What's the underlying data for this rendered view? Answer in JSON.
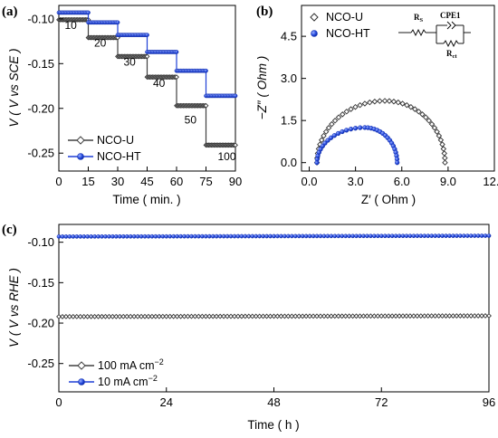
{
  "chart_data": [
    {
      "panel": "(a)",
      "type": "line",
      "xlabel": "Time ( min. )",
      "ylabel": "V ( V vs SCE )",
      "xlim": [
        0,
        90
      ],
      "ylim": [
        -0.27,
        -0.085
      ],
      "xticks": [
        "0",
        "15",
        "30",
        "45",
        "60",
        "75",
        "90"
      ],
      "yticks": [
        "-0.10",
        "-0.15",
        "-0.20",
        "-0.25"
      ],
      "annotations": [
        "10",
        "20",
        "30",
        "40",
        "50",
        "100"
      ],
      "legend": "bottom-left",
      "series": [
        {
          "name": "NCO-U",
          "color": "#404040",
          "marker": "diamond",
          "steps": [
            {
              "x0": 0,
              "x1": 15,
              "y": -0.101
            },
            {
              "x0": 15,
              "x1": 30,
              "y": -0.121
            },
            {
              "x0": 30,
              "x1": 45,
              "y": -0.142
            },
            {
              "x0": 45,
              "x1": 60,
              "y": -0.165
            },
            {
              "x0": 60,
              "x1": 75,
              "y": -0.197
            },
            {
              "x0": 75,
              "x1": 90,
              "y": -0.241
            }
          ]
        },
        {
          "name": "NCO-HT",
          "color": "#1f3fd6",
          "marker": "circle",
          "steps": [
            {
              "x0": 0,
              "x1": 15,
              "y": -0.093
            },
            {
              "x0": 15,
              "x1": 30,
              "y": -0.104
            },
            {
              "x0": 30,
              "x1": 45,
              "y": -0.118
            },
            {
              "x0": 45,
              "x1": 60,
              "y": -0.137
            },
            {
              "x0": 60,
              "x1": 75,
              "y": -0.158
            },
            {
              "x0": 75,
              "x1": 90,
              "y": -0.186
            }
          ]
        }
      ]
    },
    {
      "panel": "(b)",
      "type": "scatter",
      "xlabel": "Z′ ( Ohm )",
      "ylabel": "−Z″ ( Ohm )",
      "xlim": [
        -0.5,
        12.0
      ],
      "ylim": [
        -0.3,
        5.6
      ],
      "xticks": [
        "0.0",
        "3.0",
        "6.0",
        "9.0",
        "12.0"
      ],
      "yticks": [
        "0.0",
        "1.5",
        "3.0",
        "4.5"
      ],
      "legend": "top-left",
      "circuit_labels": {
        "rs": "R",
        "rs_sub": "S",
        "cpe": "CPE1",
        "rct": "R",
        "rct_sub": "ct"
      },
      "series": [
        {
          "name": "NCO-U",
          "color": "#303030",
          "marker": "diamond-open",
          "arc": {
            "x_start": 0.5,
            "x_end": 8.8,
            "peak_x": 4.9,
            "peak_y": 2.2
          },
          "points": 42
        },
        {
          "name": "NCO-HT",
          "color": "#1f3fd6",
          "marker": "circle-filled",
          "arc": {
            "x_start": 0.5,
            "x_end": 5.7,
            "peak_x": 3.6,
            "peak_y": 1.25
          },
          "points": 32
        }
      ]
    },
    {
      "panel": "(c)",
      "type": "line",
      "xlabel": "Time ( h )",
      "ylabel": "V ( V vs RHE )",
      "xlim": [
        0,
        96
      ],
      "ylim": [
        -0.285,
        -0.078
      ],
      "xticks": [
        "0",
        "24",
        "48",
        "72",
        "96"
      ],
      "yticks": [
        "-0.10",
        "-0.15",
        "-0.20",
        "-0.25"
      ],
      "legend": "bottom-left",
      "series": [
        {
          "name": "100 mA cm",
          "superscript": "−2",
          "color": "#404040",
          "marker": "diamond",
          "x": [
            0,
            96
          ],
          "y": [
            -0.192,
            -0.191
          ]
        },
        {
          "name": "10 mA cm",
          "superscript": "−2",
          "color": "#1f3fd6",
          "marker": "circle",
          "x": [
            0,
            96
          ],
          "y": [
            -0.093,
            -0.092
          ]
        }
      ]
    }
  ]
}
